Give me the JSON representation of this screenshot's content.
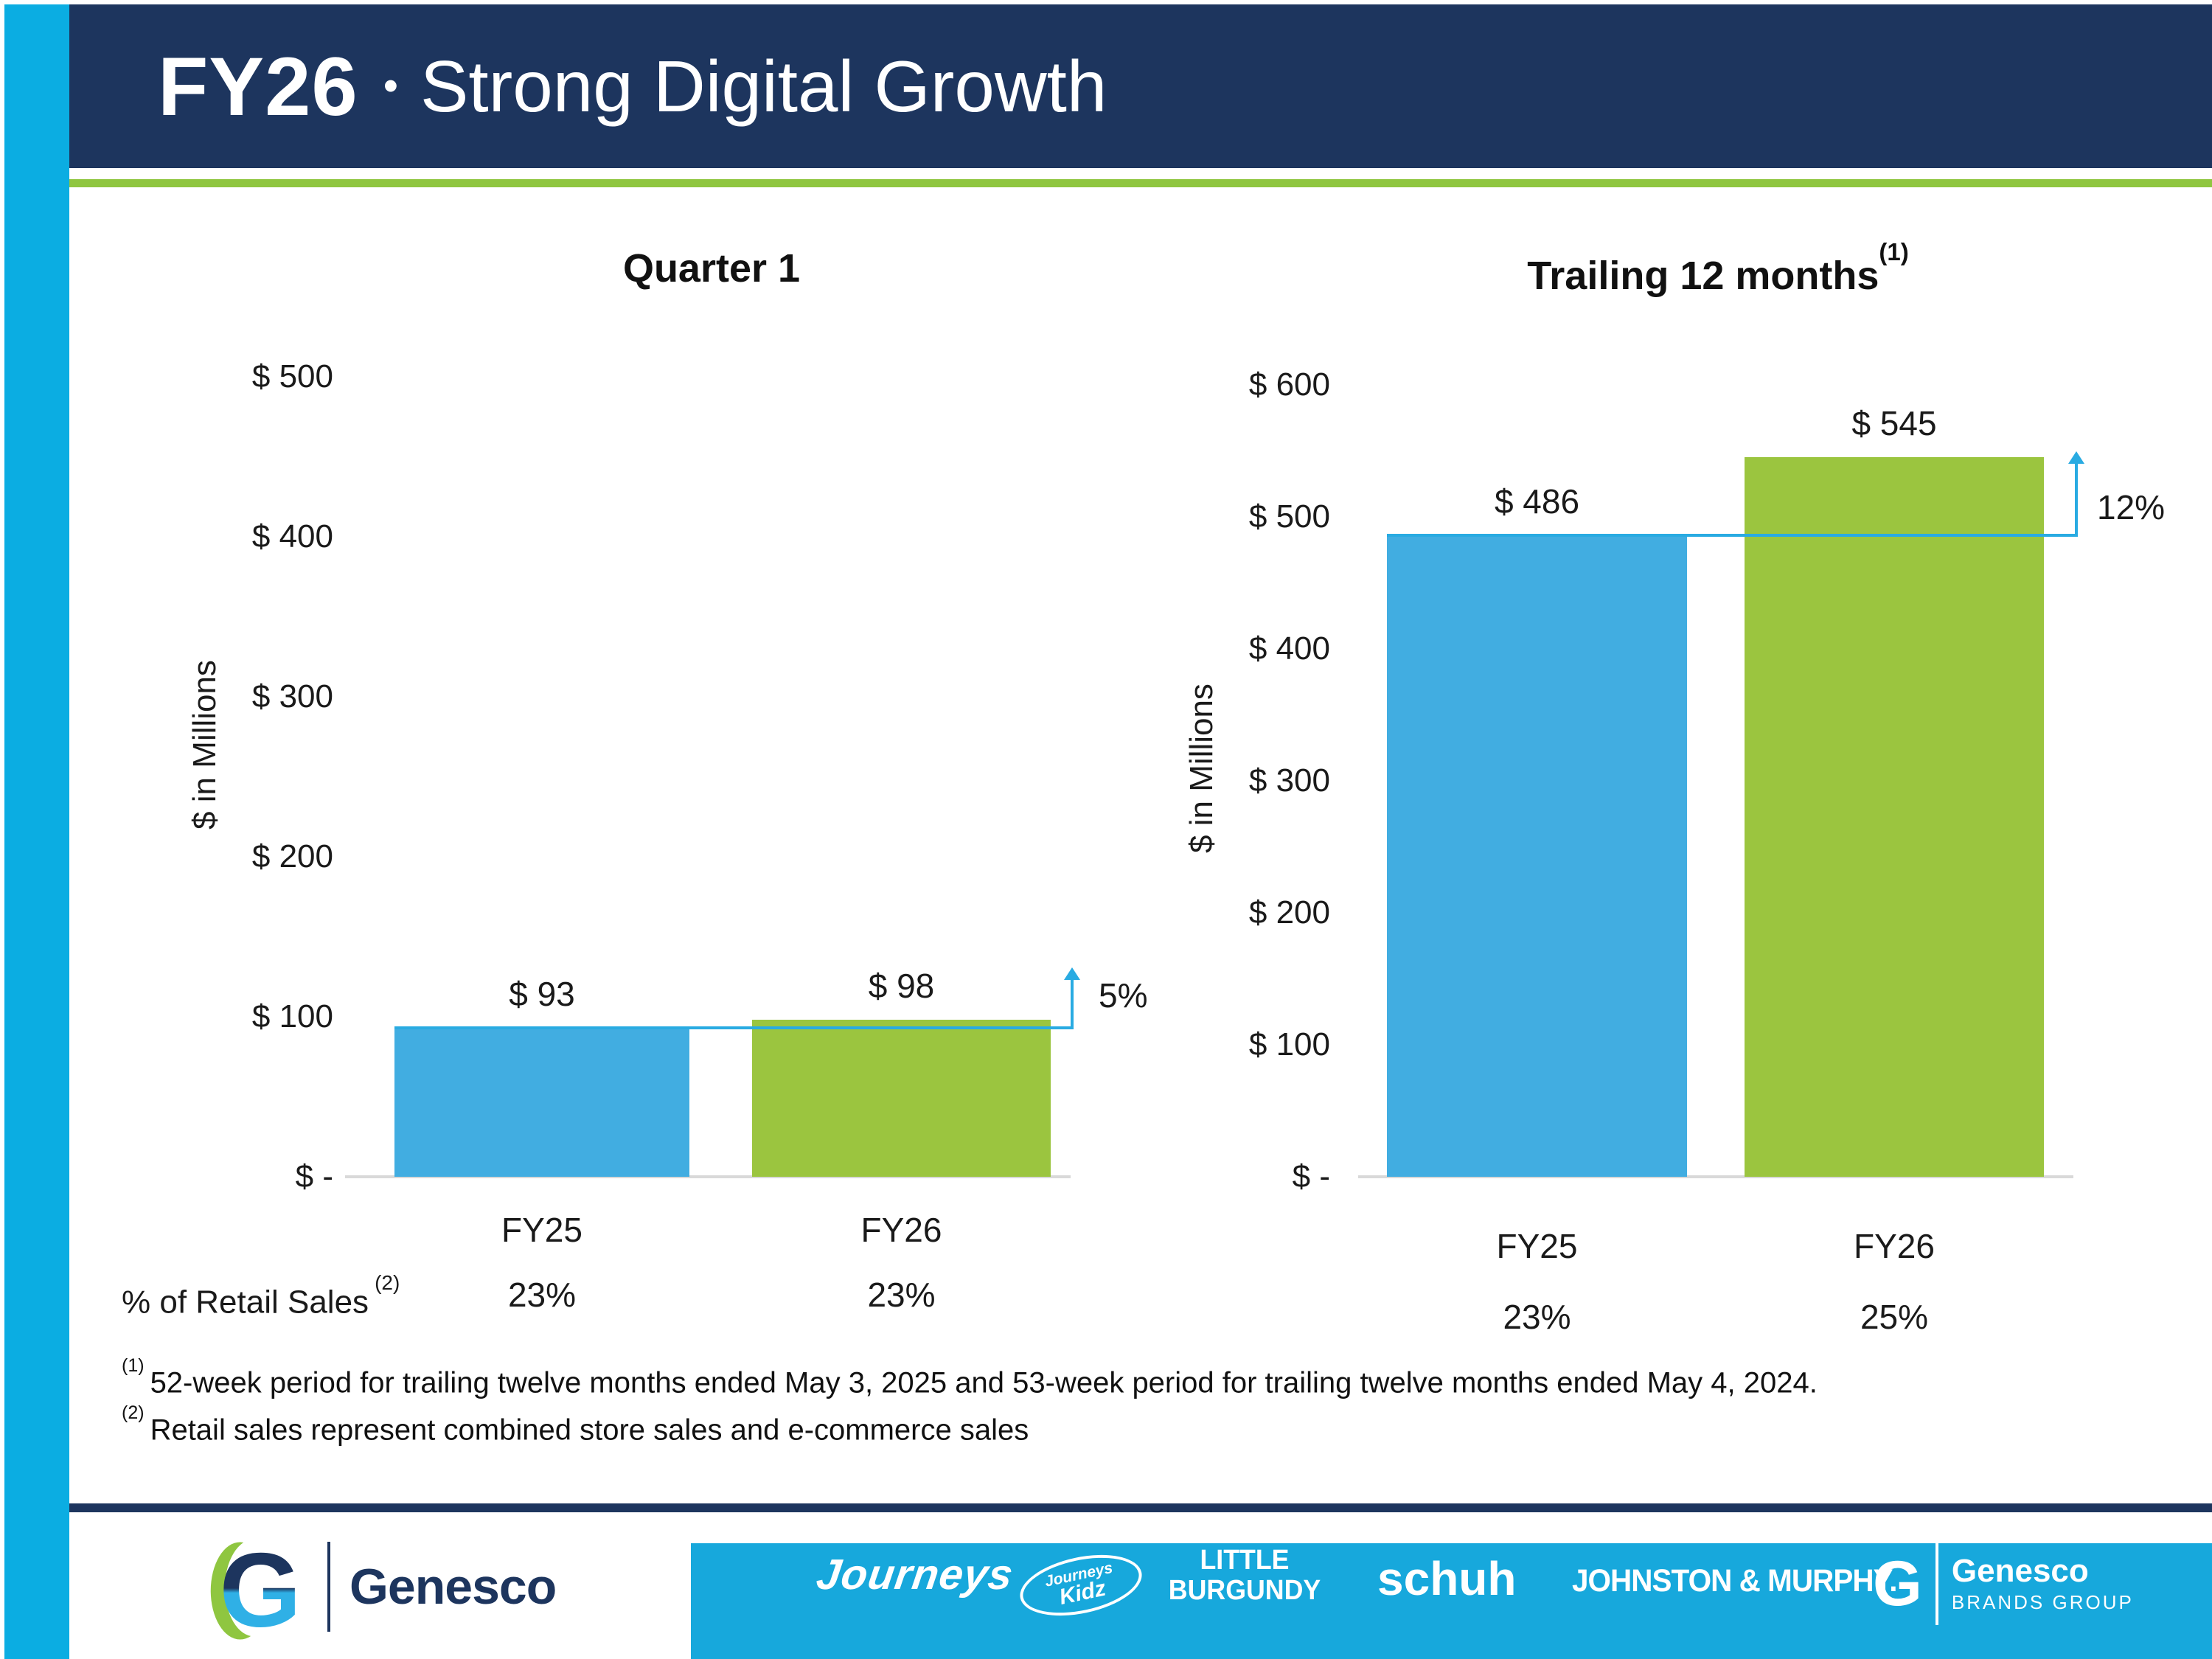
{
  "header": {
    "fiscal_year": "FY26",
    "separator": "•",
    "title": "Strong Digital Growth"
  },
  "chart_data": [
    {
      "type": "bar",
      "title": "Quarter 1",
      "title_sup": "",
      "ylabel": "$ in Millions",
      "categories": [
        "FY25",
        "FY26"
      ],
      "values": [
        93,
        98
      ],
      "value_labels": [
        "$ 93",
        "$ 98"
      ],
      "ylim": [
        0,
        500
      ],
      "ytick_interval": 100,
      "ytick_labels": [
        "$ 500",
        "$ 400",
        "$ 300",
        "$ 200",
        "$ 100",
        "$ -"
      ],
      "growth_label": "5%",
      "pct_of_retail_sales": [
        "23%",
        "23%"
      ],
      "bar_colors": [
        "#41ade1",
        "#9bc53f"
      ],
      "grid": false,
      "legend": "none"
    },
    {
      "type": "bar",
      "title": "Trailing 12 months",
      "title_sup": "(1)",
      "ylabel": "$ in Millions",
      "categories": [
        "FY25",
        "FY26"
      ],
      "values": [
        486,
        545
      ],
      "value_labels": [
        "$ 486",
        "$ 545"
      ],
      "ylim": [
        0,
        600
      ],
      "ytick_interval": 100,
      "ytick_labels": [
        "$ 600",
        "$ 500",
        "$ 400",
        "$ 300",
        "$ 200",
        "$ 100",
        "$ -"
      ],
      "growth_label": "12%",
      "pct_of_retail_sales": [
        "23%",
        "25%"
      ],
      "bar_colors": [
        "#41ade1",
        "#9bc53f"
      ],
      "grid": false,
      "legend": "none"
    }
  ],
  "retail_row": {
    "label": "% of Retail Sales",
    "sup": "(2)"
  },
  "footnotes": [
    {
      "sup": "(1)",
      "text": "52-week period for trailing twelve months ended May 3, 2025 and 53-week period for trailing twelve months ended May 4, 2024."
    },
    {
      "sup": "(2)",
      "text": "Retail sales represent combined store sales and e-commerce sales"
    }
  ],
  "footer": {
    "genesco_wordmark": "Genesco",
    "journeys": "Journeys",
    "journeys_kidz_top": "Journeys",
    "journeys_kidz_bottom": "Kidz",
    "little_burgundy_line1": "LITTLE",
    "little_burgundy_line2": "BURGUNDY",
    "schuh": "schuh",
    "johnston_murphy": "JOHNSTON & MURPHY.",
    "brands_group": {
      "letter": "G",
      "name": "Genesco",
      "sub": "BRANDS GROUP"
    }
  },
  "colors": {
    "navy": "#1d355e",
    "cyan_stripe": "#0bade2",
    "footer_cyan": "#17a8dc",
    "bar_blue": "#41ade1",
    "bar_green": "#9bc53f",
    "accent_line_blue": "#29abe2",
    "green_rule": "#8fc640",
    "axis_gray": "#d9d9d9"
  }
}
